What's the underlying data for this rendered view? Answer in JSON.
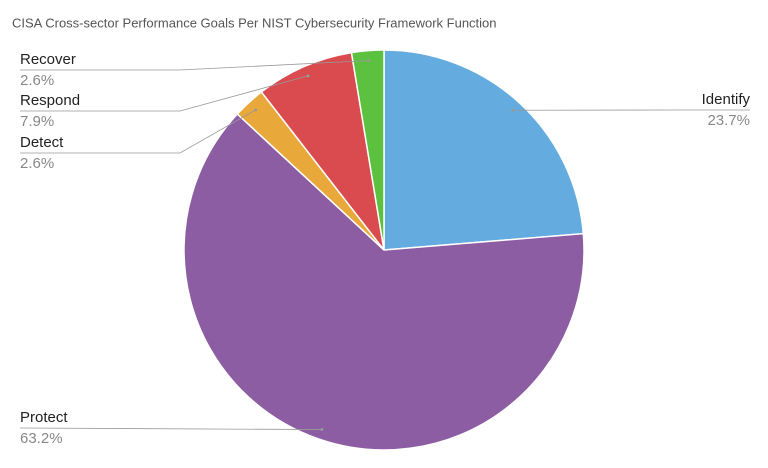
{
  "chart_data": {
    "type": "pie",
    "title": "CISA Cross-sector Performance Goals Per NIST Cybersecurity Framework Function",
    "categories": [
      "Identify",
      "Protect",
      "Detect",
      "Respond",
      "Recover"
    ],
    "values": [
      23.7,
      63.2,
      2.6,
      7.9,
      2.6
    ],
    "value_labels": [
      "23.7%",
      "63.2%",
      "2.6%",
      "7.9%",
      "2.6%"
    ],
    "colors": [
      "#64abe0",
      "#8c5da2",
      "#e9a83a",
      "#d94b4e",
      "#5bc13e"
    ]
  }
}
